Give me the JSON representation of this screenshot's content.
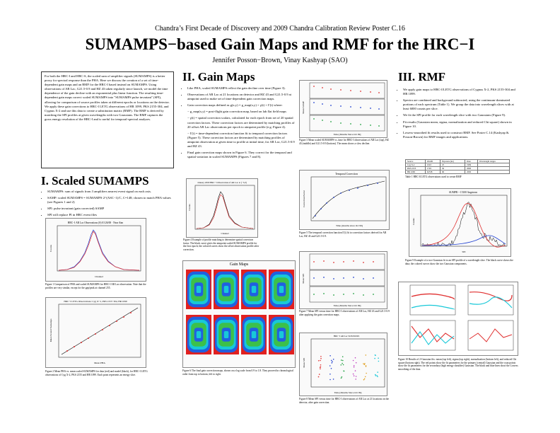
{
  "header": {
    "conference": "Chandra’s First Decade of Discovery and 2009 Chandra Calibration Review Poster C.16",
    "title": "SUMAMPS−based Gain Maps and RMF for the HRC−I",
    "authors": "Jennifer Posson−Brown, Vinay Kashyap (SAO)"
  },
  "intro": "For both the HRC-I and HRC-S, the scaled sum of amplifier signals (SUMAMPS) is a better proxy for spectral response than the PHA. Here we discuss the creation of a set of time-dependent gain maps and an RMF for the HRC-I based instead on SUMAMPS. Using observations of AR Lac, G21.5-0.9 and HZ 43 taken regularly since launch, we model the time dependence of the gain decline with an exponential plus linear function. The resulting time-dependent gain maps correct scaled SUMAMPS into \"SUMAMPS pulse invariant\" (SPI), allowing for comparison of source profiles taken at different epochs or locations on the detector. We apply these gain corrections to HRC-I LETG observations of HR 1099, PKS 2155-304, and Cygnus X-2 and use this data to create a substitution matrix (RMF). The RMF is derived by matching the SPI profiles at given wavelengths with two Gaussians. The RMF captures the gross energy resolution of the HRC-I and is useful for temporal-spectral analyses.",
  "sections": {
    "scaled": "I. Scaled SUMAMPS",
    "gain": "II. Gain Maps",
    "rmf": "III. RMF"
  },
  "scaled_bullets": [
    "SUMAMPS: sum of signals from 3 amplifiers nearest event signal on each axis.",
    "SAMP: scaled SUMAMPS = SUMAMPS·2^(ASC−1)/C, C=148; chosen to match PHA values (see Figures 1 and 2)",
    "SPI: pulse invariant (gain corrected) SAMP",
    "SPI will replace PI in HRC event files"
  ],
  "gain_bullets": [
    "Like PHA, scaled SUMAMPS reflect the gain decline over time (Figure 3).",
    "Observations of AR Lac at 21 locations on detector and HZ 43 and G21.5-0.9 at aimpoint used to make set of time-dependent gain correction maps.",
    "Gain correction maps defined as g(x,y) = g_map(x,y) × γ(t) × Γ(t) where:",
    "− g_map(x,y) = post-flight gain correction map, based on lab flat field maps",
    "− γ(t) = spatial correction scalars, calculated for each epoch from set of 20 spatial correction factors. These correction factors are determined by matching profiles of 20 offset AR Lac observations per epoch to aimpoint profile (e.g. Figure 4).",
    "− Γ(t) = time-dependent correction function fit to temporal correction factors (Figure 5). These correction factors are determined by matching profiles of aimpoint observation at given time to profile at initial time, for AR Lac, G21.5-0.9 and HZ 43.",
    "Final gain correction maps shown in Figure 6. They correct for the temporal and spatial variation in scaled SUMAMPS (Figures 7 and 8)."
  ],
  "rmf_bullets": [
    "We apply gain maps to HRC-I/LETG observations of Cygnus X-2, PKS 2155-304 and HR 1099.",
    "Spectra are combined and background subtracted, using the continuum-dominated portions of each spectrum (Table 1). We group the data into wavelength slices with at least 6000 counts per slice.",
    "We fit the SPI profile for each wavelength slice with two Gaussians (Figure 9).",
    "Fit results (Gaussian mean, sigma, normalization and reduced Chi square) shown in Figure 10.",
    "Lowess-smoothed fit results used to construct RMF. See Poster C.14 (Kashyap & Posson-Brown) for RMF images and applications."
  ],
  "figure_titles": {
    "fig1": "HRC−I AR Lac Observations (S) 01/26/00 · Near Aim",
    "fig2": "HRC−I LETG Observations: Cyg X−2, PKS 2155−304, HR 1099",
    "fig4": "January 2000 HRC−I Observation of AR Lac at (−5,0)",
    "fig5": "Temporal Correction",
    "fig6": "Gain Maps",
    "fig9": "SUMPR ~ 15100 Angstrom",
    "fig8": "HRC−I AR Lac SOS/DZ/RS"
  },
  "axis_labels": {
    "fig1_x": "Channel",
    "fig1_y": "Counts",
    "fig2_x": "Mean PHA",
    "fig2_y": "Mean Scaled Sumamps",
    "fig4_x": "Channel",
    "fig4_y": "Counts",
    "fig5_x": "Time [months since Oct 99]",
    "fig5_y": "Correction Factor",
    "fig3_x": "Time [Months Since Oct 99]",
    "fig3_y": "Mean SAMP",
    "fig7_x": "Time [Months Since Oct 99]",
    "fig7_y": "Mean SPI",
    "fig8_x": "Time [Months Since Oct 99]",
    "fig8_y": "Mean SPI",
    "fig9_x": "SPI",
    "fig9_y": "Counts"
  },
  "captions": {
    "fig1": "Figure 1 Comparison of PHA and scaled SUMAMPS for HRC-I AR Lac observation. Note that the profiles are very similar, except for the gap/peak at channel 255.",
    "fig2": "Figure 2 Mean PHA vs. mean scaled SUMAMPS for data (red) and model (black), for HRC-I LETG observations of Cyg X-2, PKS 2155 and HR 1099. Each point represents an energy slice.",
    "fig3": "Figure 3 Mean scaled SUMAMPS vs. time for HRC-I observations of AR Lac (top), HZ 43 (middle) and G21.5-0.9 (bottom). The mean shows a slow decline.",
    "fig4": "Figure 4 Example of profile matching to determine spatial correction factor. The black curve gives the aimpoint scaled SUMAMPS profile for the first epoch; the colored curves show the offset observation profile after correction.",
    "fig5": "Figure 5 The temporal correction function Γ(t) fit to correction factors derived for AR Lac, HZ 43 and G21.5-0.9.",
    "fig6": "Figure 6 The final gain correction maps, shown on a log scale from 0.9 to 1.8. They proceed in chronological order from top to bottom, left to right.",
    "fig7": "Figure 7 Mean SPI versus time for HRC-I observations of AR Lac, HZ 43 and G21.5-0.9 after applying the gain correction maps.",
    "fig8": "Figure 8 Mean SPI versus time for HRC-I observations of AR Lac at 21 locations on the detector, after gain correction.",
    "fig9": "Figure 9 Example of a two-Gaussian fit to an SPI profile of a wavelength slice. The black curve shows the data; the colored curves show the two Gaussian components.",
    "fig10": "Figure 10 Results of 2-Gaussian fits: mean (top left), sigma (top right), normalization (bottom left), and reduced Chi square (bottom right). The red points show the fit parameters for the primary (central) Gaussian and the cyan points show the fit parameters for the secondary (high energy shoulder) Gaussian. The black and blue lines show the Lowess smoothing of the data."
  },
  "table1": {
    "caption": "Table 1 HRC-I/LETG observations used to create RMF",
    "header": [
      "Source",
      "ObsID",
      "Exposure (ks)",
      "Date",
      "Wavelength ranges"
    ],
    "rows": [
      [
        "Cyg X-2",
        "1043",
        "25",
        "1999",
        ""
      ],
      [
        "PKS 2155",
        "1703",
        "30",
        "2000",
        ""
      ],
      [
        "HR 1099",
        "62538",
        "96",
        "2000",
        ""
      ]
    ]
  },
  "colors": {
    "red": "#e03030",
    "green": "#20a040",
    "blue": "#2040d0",
    "gain_green": "#3cc04a",
    "gain_cyan": "#18c8d8",
    "gain_blue": "#2060e0",
    "gain_red": "#e02020"
  },
  "gain_maps": {
    "count": 8
  }
}
